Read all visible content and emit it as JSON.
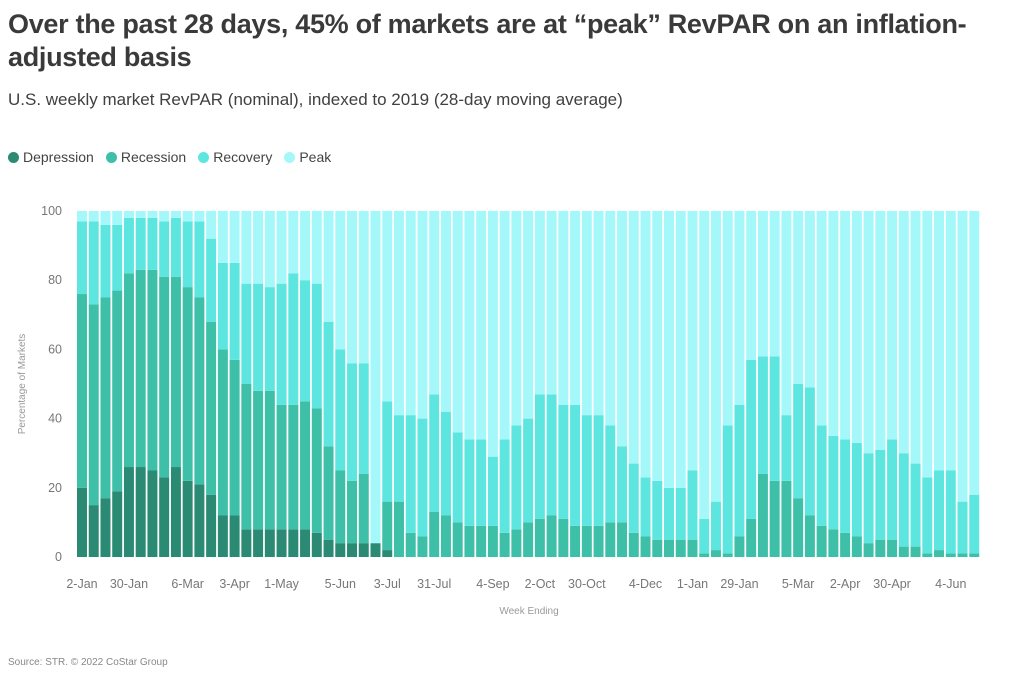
{
  "header": {
    "title": "Over the past 28 days, 45% of markets are at “peak” RevPAR on an inflation-adjusted basis",
    "subtitle": "U.S. weekly market RevPAR (nominal), indexed to 2019 (28-day moving average)"
  },
  "legend": [
    {
      "label": "Depression",
      "color": "#2a8a73"
    },
    {
      "label": "Recession",
      "color": "#3dbfa8"
    },
    {
      "label": "Recovery",
      "color": "#5de6df"
    },
    {
      "label": "Peak",
      "color": "#a5f8fa"
    }
  ],
  "source": "Source: STR. © 2022 CoStar Group",
  "chart_data": {
    "type": "bar",
    "stacked": true,
    "title": "Over the past 28 days, 45% of markets are at “peak” RevPAR on an inflation-adjusted basis",
    "subtitle": "U.S. weekly market RevPAR (nominal), indexed to 2019 (28-day moving average)",
    "xlabel": "Week Ending",
    "ylabel": "Percentage of Markets",
    "ylim": [
      0,
      100
    ],
    "yticks": [
      0,
      20,
      40,
      60,
      80,
      100
    ],
    "grid": false,
    "legend_position": "top-left",
    "x_tick_labels": [
      {
        "label": "2-Jan",
        "index": 0
      },
      {
        "label": "30-Jan",
        "index": 4
      },
      {
        "label": "6-Mar",
        "index": 9
      },
      {
        "label": "3-Apr",
        "index": 13
      },
      {
        "label": "1-May",
        "index": 17
      },
      {
        "label": "5-Jun",
        "index": 22
      },
      {
        "label": "3-Jul",
        "index": 26
      },
      {
        "label": "31-Jul",
        "index": 30
      },
      {
        "label": "4-Sep",
        "index": 35
      },
      {
        "label": "2-Oct",
        "index": 39
      },
      {
        "label": "30-Oct",
        "index": 43
      },
      {
        "label": "4-Dec",
        "index": 48
      },
      {
        "label": "1-Jan",
        "index": 52
      },
      {
        "label": "29-Jan",
        "index": 56
      },
      {
        "label": "5-Mar",
        "index": 61
      },
      {
        "label": "2-Apr",
        "index": 65
      },
      {
        "label": "30-Apr",
        "index": 69
      },
      {
        "label": "4-Jun",
        "index": 74
      }
    ],
    "series": [
      {
        "name": "Depression",
        "color": "#2a8a73",
        "values": [
          20,
          15,
          17,
          19,
          26,
          26,
          25,
          23,
          26,
          22,
          21,
          18,
          12,
          12,
          8,
          8,
          8,
          8,
          8,
          8,
          7,
          5,
          4,
          4,
          4,
          4,
          2,
          0,
          0,
          0,
          0,
          0,
          0,
          0,
          0,
          0,
          0,
          0,
          0,
          0,
          0,
          0,
          0,
          0,
          0,
          0,
          0,
          0,
          0,
          0,
          0,
          0,
          0,
          0,
          0,
          0,
          0,
          0,
          0,
          0,
          0,
          0,
          0,
          0,
          0,
          0,
          0,
          0,
          0,
          0,
          0,
          0,
          0,
          0,
          0,
          0,
          0
        ]
      },
      {
        "name": "Recession",
        "color": "#3dbfa8",
        "values": [
          56,
          58,
          58,
          58,
          56,
          57,
          58,
          58,
          55,
          56,
          54,
          50,
          48,
          45,
          42,
          40,
          40,
          36,
          36,
          37,
          36,
          27,
          21,
          18,
          20,
          0,
          14,
          16,
          7,
          6,
          13,
          12,
          10,
          9,
          9,
          9,
          7,
          8,
          10,
          11,
          12,
          11,
          9,
          9,
          9,
          10,
          10,
          7,
          6,
          5,
          5,
          5,
          5,
          1,
          2,
          1,
          6,
          11,
          24,
          22,
          22,
          17,
          12,
          9,
          8,
          7,
          6,
          4,
          5,
          5,
          3,
          3,
          1,
          2,
          1,
          1,
          1
        ]
      },
      {
        "name": "Recovery",
        "color": "#5de6df",
        "values": [
          21,
          24,
          21,
          19,
          16,
          15,
          15,
          16,
          17,
          19,
          22,
          24,
          25,
          28,
          29,
          31,
          30,
          35,
          38,
          35,
          36,
          36,
          35,
          34,
          32,
          0,
          29,
          25,
          34,
          34,
          34,
          30,
          26,
          25,
          25,
          20,
          27,
          30,
          30,
          36,
          35,
          33,
          35,
          32,
          32,
          28,
          22,
          20,
          17,
          17,
          15,
          15,
          20,
          10,
          14,
          37,
          38,
          46,
          34,
          36,
          19,
          33,
          37,
          29,
          27,
          27,
          27,
          26,
          26,
          29,
          27,
          24,
          22,
          23,
          24,
          15,
          17
        ]
      },
      {
        "name": "Peak",
        "color": "#a5f8fa",
        "values": [
          3,
          3,
          4,
          4,
          2,
          2,
          2,
          3,
          2,
          3,
          3,
          8,
          15,
          15,
          21,
          21,
          22,
          21,
          18,
          20,
          21,
          32,
          40,
          44,
          44,
          96,
          55,
          59,
          59,
          60,
          53,
          58,
          64,
          66,
          66,
          71,
          66,
          62,
          60,
          53,
          53,
          56,
          56,
          59,
          59,
          62,
          68,
          73,
          77,
          78,
          80,
          80,
          75,
          89,
          84,
          62,
          56,
          43,
          42,
          42,
          59,
          50,
          51,
          62,
          65,
          66,
          67,
          70,
          69,
          66,
          70,
          73,
          77,
          75,
          75,
          84,
          82
        ]
      }
    ]
  }
}
